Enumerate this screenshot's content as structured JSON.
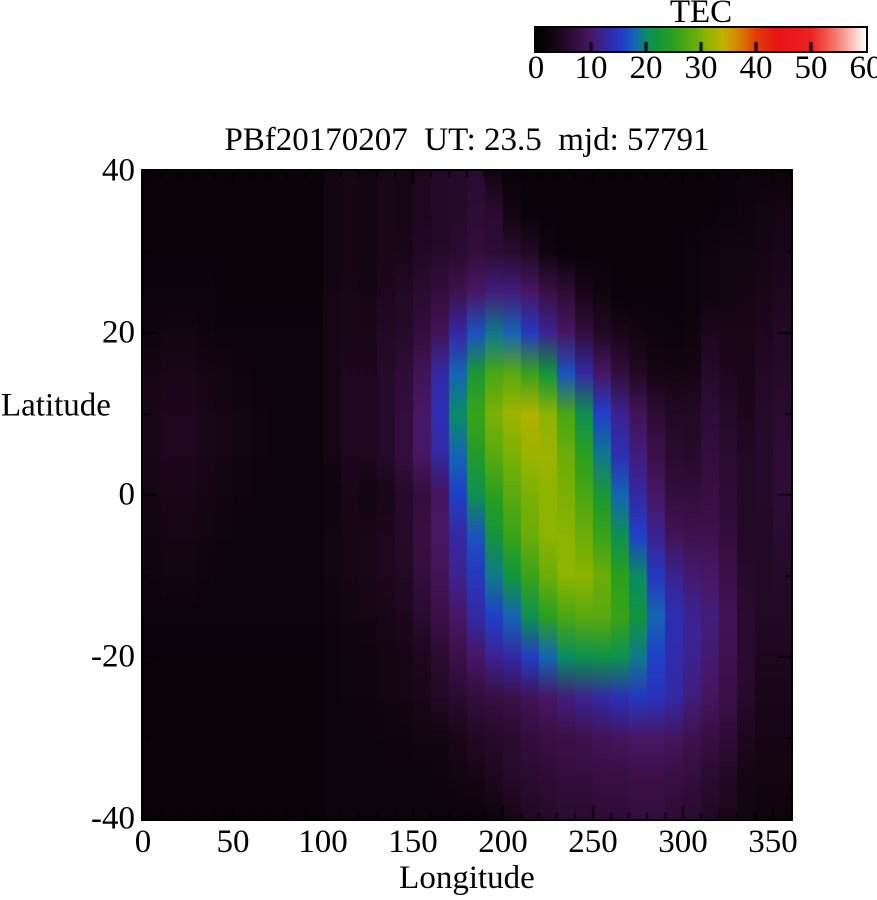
{
  "chart_data": {
    "type": "heatmap",
    "title": "PBf20170207  UT: 23.5  mjd: 57791",
    "xlabel": "Longitude",
    "ylabel": "Latitude",
    "xlim": [
      0,
      360
    ],
    "ylim": [
      -40,
      40
    ],
    "x_ticks_major": [
      0,
      50,
      100,
      150,
      200,
      250,
      300,
      350
    ],
    "x_tick_minor_step": 10,
    "y_ticks_major": [
      40,
      20,
      0,
      -20,
      -40
    ],
    "y_tick_minor_step": 10,
    "grid": "off",
    "colorbar": {
      "label": "TEC",
      "min": 0,
      "max": 60,
      "ticks": [
        0,
        10,
        20,
        30,
        40,
        50,
        60
      ],
      "orientation": "horizontal"
    },
    "colormap_stops": [
      [
        0,
        "#000000"
      ],
      [
        4,
        "#190618"
      ],
      [
        6,
        "#2a0b30"
      ],
      [
        8,
        "#3b1048"
      ],
      [
        10,
        "#471765"
      ],
      [
        12,
        "#3c2390"
      ],
      [
        14,
        "#2b2fb4"
      ],
      [
        16,
        "#2040c8"
      ],
      [
        18,
        "#1565b4"
      ],
      [
        20,
        "#0a8c64"
      ],
      [
        22,
        "#12953c"
      ],
      [
        25,
        "#2aa01e"
      ],
      [
        28,
        "#5aaa0f"
      ],
      [
        31,
        "#8cb400"
      ],
      [
        34,
        "#c3b000"
      ],
      [
        36,
        "#d29200"
      ],
      [
        38,
        "#dd6a00"
      ],
      [
        40,
        "#e13c0a"
      ],
      [
        44,
        "#e81414"
      ],
      [
        50,
        "#ee2222"
      ],
      [
        53,
        "#f25a50"
      ],
      [
        56,
        "#f79c90"
      ],
      [
        58,
        "#fccfc8"
      ],
      [
        60,
        "#ffffff"
      ]
    ],
    "lon_bin_width_deg": 10,
    "lat_step_deg": 5,
    "lons": [
      5,
      15,
      25,
      35,
      45,
      55,
      65,
      75,
      85,
      95,
      105,
      115,
      125,
      135,
      145,
      155,
      165,
      175,
      185,
      195,
      205,
      215,
      225,
      235,
      245,
      255,
      265,
      275,
      285,
      295,
      305,
      315,
      325,
      335,
      345,
      355
    ],
    "lats": [
      40,
      35,
      30,
      25,
      20,
      15,
      10,
      5,
      0,
      -5,
      -10,
      -15,
      -20,
      -25,
      -30,
      -35,
      -40
    ],
    "tec_grid": [
      [
        1.5,
        1.5,
        1.5,
        1.5,
        1.5,
        1.5,
        1.5,
        1.5,
        1.5,
        1.5,
        3,
        3.5,
        3,
        4,
        3.5,
        4.5,
        5,
        5.5,
        6,
        3,
        1.5,
        1.5,
        1.5,
        1.5,
        1.5,
        1.5,
        1.5,
        1.5,
        1.5,
        1.5,
        1.5,
        1.5,
        1.5,
        2,
        2,
        2
      ],
      [
        1.5,
        1.5,
        1.5,
        1.5,
        1.5,
        1.5,
        1.5,
        1.5,
        1.5,
        1.5,
        3,
        3.5,
        3,
        4,
        3.5,
        4.5,
        5,
        5.5,
        6.5,
        6,
        3,
        1.5,
        1.5,
        1.5,
        1.5,
        1.5,
        1.5,
        1.5,
        1.5,
        1.5,
        1.5,
        1.5,
        2,
        2.5,
        3,
        3.5
      ],
      [
        1.5,
        1.5,
        1.5,
        1.5,
        1.5,
        1.5,
        1.5,
        1.5,
        1.5,
        1.5,
        3,
        3.5,
        3,
        4,
        4,
        5,
        5.5,
        6,
        7,
        6.5,
        6,
        5,
        2.5,
        1.5,
        1.5,
        1.5,
        1.5,
        1.5,
        1.5,
        1.5,
        2,
        2.5,
        3,
        3,
        3.5,
        4
      ],
      [
        2,
        2,
        2,
        2,
        1.5,
        1.5,
        1.5,
        1.5,
        1.5,
        1.5,
        3.5,
        4,
        3.5,
        4.5,
        5,
        6,
        7,
        8.5,
        10,
        11,
        11,
        10,
        8,
        6.5,
        4,
        2.5,
        1.5,
        1.5,
        1.5,
        1.5,
        2,
        2.5,
        3,
        3.5,
        4,
        4.5
      ],
      [
        2.5,
        3,
        3,
        2.5,
        2,
        2,
        2,
        2,
        2,
        2,
        3.5,
        4,
        4,
        5,
        5.5,
        7,
        9,
        13,
        17,
        19,
        18,
        15,
        12,
        10,
        7,
        5,
        4,
        3,
        2.5,
        2,
        2.5,
        4.5,
        4,
        4,
        4.5,
        5
      ],
      [
        3.5,
        4,
        4,
        3.5,
        3,
        2.5,
        2,
        2,
        2,
        2,
        3.5,
        4.5,
        4.5,
        5.5,
        6.5,
        9,
        13,
        18,
        23,
        27,
        28,
        26,
        22,
        17,
        13,
        10,
        7,
        5,
        3.5,
        3,
        3.5,
        5.5,
        4.5,
        4,
        5,
        5.5
      ],
      [
        4,
        4.5,
        4.5,
        4,
        3.5,
        3,
        2.5,
        2,
        2,
        2,
        3.5,
        4.5,
        4.5,
        5.5,
        7,
        10,
        14,
        20,
        26,
        30,
        32,
        33,
        31,
        27,
        21,
        16,
        12,
        9,
        6.5,
        5,
        5,
        6.5,
        5.5,
        4.5,
        5.5,
        6
      ],
      [
        4,
        4.5,
        4.5,
        4,
        3.5,
        3,
        2.5,
        2,
        2,
        2,
        3.5,
        4.5,
        4.5,
        5.5,
        7,
        10,
        13,
        18,
        24,
        28,
        30,
        32,
        32,
        29,
        25,
        19,
        14,
        11,
        8,
        6,
        5.5,
        7,
        6,
        5,
        5.5,
        6.5
      ],
      [
        3.5,
        4,
        4,
        3.5,
        3,
        2.5,
        2,
        2,
        2,
        2,
        2.5,
        4,
        3,
        4,
        5.5,
        7,
        9.5,
        16,
        21,
        25,
        28,
        30,
        31,
        30,
        27,
        23,
        18,
        13,
        10,
        7,
        7,
        7.5,
        6.5,
        5,
        5.5,
        6.5
      ],
      [
        3,
        3.5,
        3.5,
        3,
        2.5,
        2,
        2,
        2,
        2,
        2,
        3,
        3.5,
        4,
        4.5,
        5.5,
        7.5,
        10,
        13,
        17,
        22,
        26,
        29,
        31,
        31,
        29,
        26,
        21,
        16,
        12,
        9,
        8.5,
        8.5,
        7,
        5,
        5,
        6
      ],
      [
        2.5,
        3,
        3,
        2.5,
        2,
        2,
        2,
        2,
        2,
        2,
        3,
        3.5,
        4,
        4.5,
        5,
        7,
        9,
        12,
        15,
        19,
        22,
        26,
        29,
        31,
        31,
        29,
        25,
        20,
        15,
        12,
        10.5,
        10,
        8,
        5.5,
        5,
        5.5
      ],
      [
        2,
        2,
        2,
        2,
        2,
        2,
        2,
        2,
        2,
        2,
        2.5,
        3,
        3.5,
        4,
        4.5,
        6,
        8,
        10,
        13,
        16,
        18,
        21,
        25,
        27,
        28,
        28,
        26,
        22,
        18,
        14,
        12,
        11,
        9,
        6,
        5,
        5
      ],
      [
        1.5,
        1.5,
        1.5,
        1.5,
        1.5,
        1.5,
        1.5,
        1.5,
        1.5,
        1.5,
        2,
        2.5,
        2.5,
        3,
        3.5,
        4.5,
        6,
        8,
        10,
        12,
        13,
        15.5,
        18,
        20,
        21,
        21.5,
        21,
        19,
        16,
        13.5,
        12,
        10.5,
        8.5,
        6,
        4.5,
        4.5
      ],
      [
        1.5,
        1.5,
        1.5,
        1.5,
        1.5,
        1.5,
        1.5,
        1.5,
        1.5,
        1.5,
        2,
        2.5,
        2.5,
        3,
        3.5,
        4,
        5,
        6,
        7,
        7.5,
        8,
        9,
        10,
        11,
        12,
        13,
        14,
        15,
        14.5,
        13,
        11,
        9.5,
        8,
        5.5,
        4,
        4
      ],
      [
        1.5,
        1.5,
        1.5,
        1.5,
        1.5,
        1.5,
        1.5,
        1.5,
        1.5,
        1.5,
        2,
        2,
        2,
        2.5,
        2.5,
        3,
        3,
        4,
        5,
        5.5,
        6,
        7,
        7.5,
        8,
        8.5,
        9,
        9.5,
        10,
        10,
        9.5,
        8.5,
        7.5,
        6.5,
        4.5,
        3.5,
        3.5
      ],
      [
        1.5,
        1.5,
        1.5,
        1.5,
        1.5,
        1.5,
        1.5,
        1.5,
        1.5,
        1.5,
        2,
        2,
        2,
        2,
        2,
        2,
        2.5,
        3,
        3.5,
        4.5,
        5.5,
        6,
        6.5,
        7,
        7,
        7.5,
        7.5,
        8,
        8,
        7.5,
        7,
        6,
        5,
        3.5,
        3,
        3
      ],
      [
        1.5,
        1.5,
        1.5,
        1.5,
        1.5,
        1.5,
        1.5,
        1.5,
        1.5,
        1.5,
        2,
        2,
        2,
        2,
        2,
        2,
        2,
        2,
        2,
        2.5,
        4,
        5,
        5.5,
        6,
        6,
        6.5,
        6.5,
        7,
        7,
        6.5,
        6,
        5,
        4,
        3,
        2.5,
        2.5
      ]
    ]
  }
}
